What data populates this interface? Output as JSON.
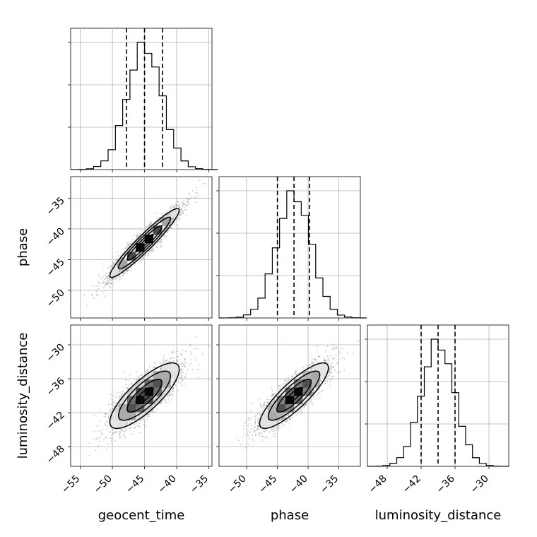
{
  "chart_data": {
    "type": "corner",
    "parameters": [
      {
        "label": "geocent_time",
        "mean": -45.0,
        "sd": 2.7,
        "range": [
          -56.5,
          -34.5
        ],
        "ticks": [
          -55,
          -50,
          -45,
          -40,
          -35
        ],
        "quantiles": [
          -47.8,
          -45.0,
          -42.2
        ]
      },
      {
        "label": "phase",
        "mean": -42.3,
        "sd": 2.8,
        "range": [
          -54.5,
          -31.5
        ],
        "ticks": [
          -50,
          -45,
          -40,
          -35
        ],
        "quantiles": [
          -45.0,
          -42.3,
          -39.8
        ]
      },
      {
        "label": "luminosity_distance",
        "mean": -39.0,
        "sd": 2.9,
        "range": [
          -51.5,
          -26.5
        ],
        "ticks": [
          -48,
          -42,
          -36,
          -30
        ],
        "quantiles": [
          -42.0,
          -39.0,
          -36.0
        ]
      }
    ],
    "correlations": {
      "1-0": 0.95,
      "2-0": 0.8,
      "2-1": 0.85
    },
    "tick_labels": {
      "geocent_time": [
        "−55",
        "−50",
        "−45",
        "−40",
        "−35"
      ],
      "phase": [
        "−50",
        "−45",
        "−40",
        "−35"
      ],
      "luminosity_distance": [
        "−48",
        "−42",
        "−36",
        "−30"
      ]
    },
    "histogram_bins": 20,
    "grid": true,
    "contour_levels": 3,
    "colors": {
      "line": "#000000",
      "points": "#808080",
      "grid": "#b0b0b0"
    }
  }
}
